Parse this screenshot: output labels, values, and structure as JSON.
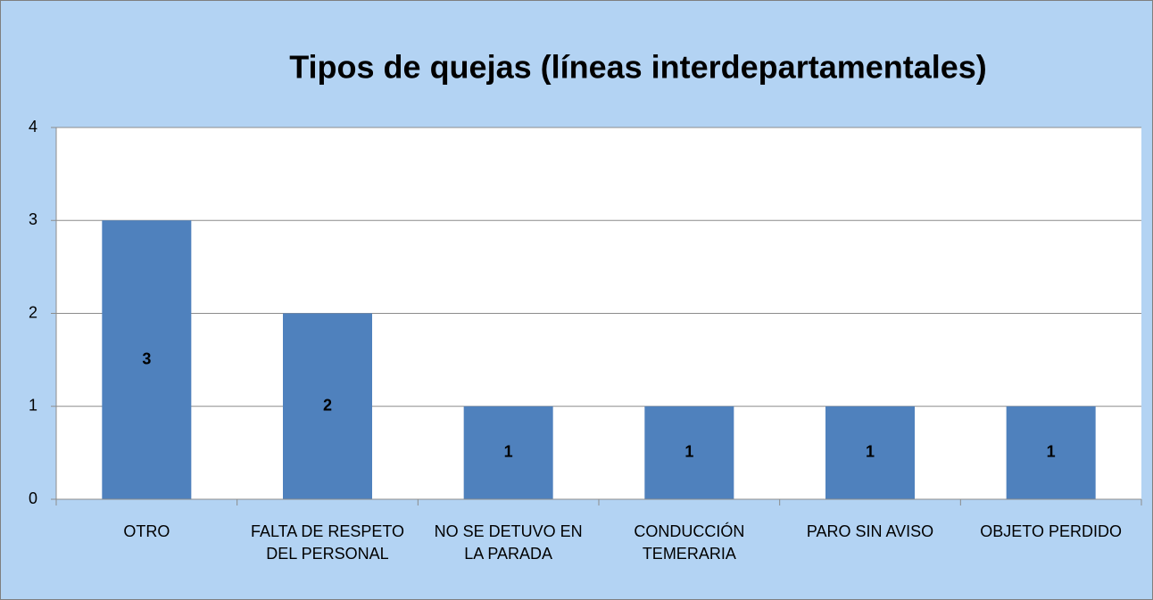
{
  "chart_data": {
    "type": "bar",
    "title": "Tipos de quejas (líneas interdepartamentales)",
    "categories": [
      "OTRO",
      "FALTA DE RESPETO DEL PERSONAL",
      "NO SE DETUVO EN LA PARADA",
      "CONDUCCIÓN TEMERARIA",
      "PARO SIN AVISO",
      "OBJETO PERDIDO"
    ],
    "values": [
      3,
      2,
      1,
      1,
      1,
      1
    ],
    "color": "#4f81bd",
    "ylim": [
      0,
      4
    ],
    "yticks": [
      0,
      1,
      2,
      3,
      4
    ],
    "grid": true
  }
}
